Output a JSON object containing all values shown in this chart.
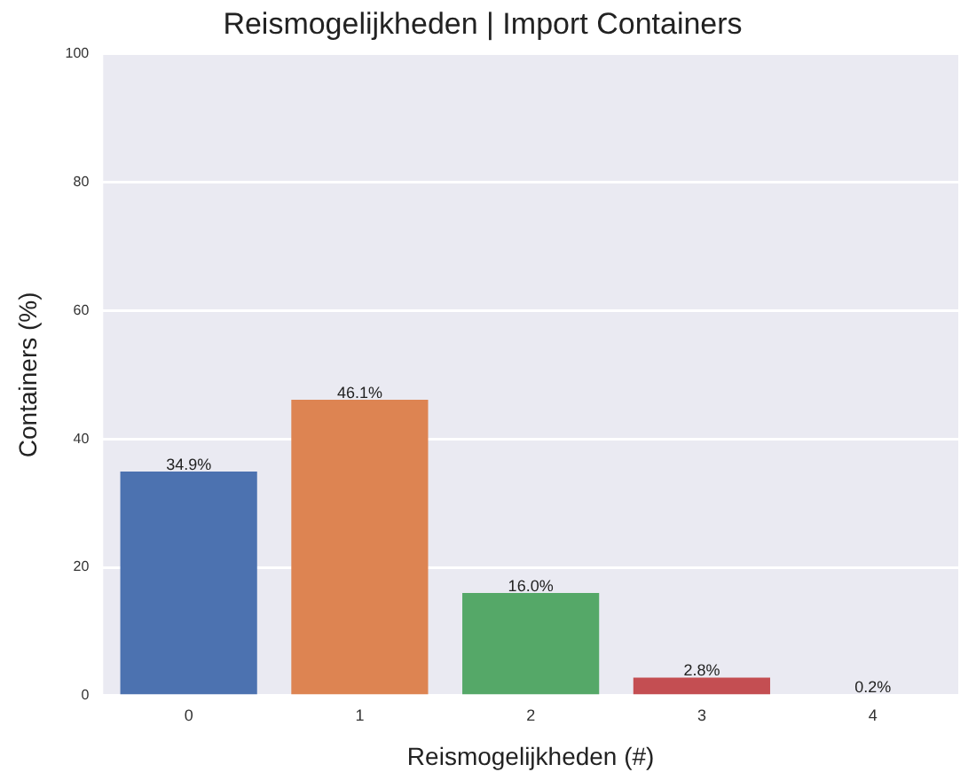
{
  "chart_data": {
    "type": "bar",
    "title": "Reismogelijkheden | Import Containers",
    "xlabel": "Reismogelijkheden (#)",
    "ylabel": "Containers (%)",
    "categories": [
      "0",
      "1",
      "2",
      "3",
      "4"
    ],
    "values": [
      34.9,
      46.1,
      16.0,
      2.8,
      0.2
    ],
    "colors": [
      "#4c72b0",
      "#dd8452",
      "#55a868",
      "#c44e52",
      "#8172b3"
    ],
    "value_labels": [
      "34.9%",
      "46.1%",
      "16.0%",
      "2.8%",
      "0.2%"
    ],
    "ylim": [
      0,
      100
    ],
    "yticks": [
      0,
      20,
      40,
      60,
      80,
      100
    ],
    "grid": "y",
    "legend": false
  }
}
